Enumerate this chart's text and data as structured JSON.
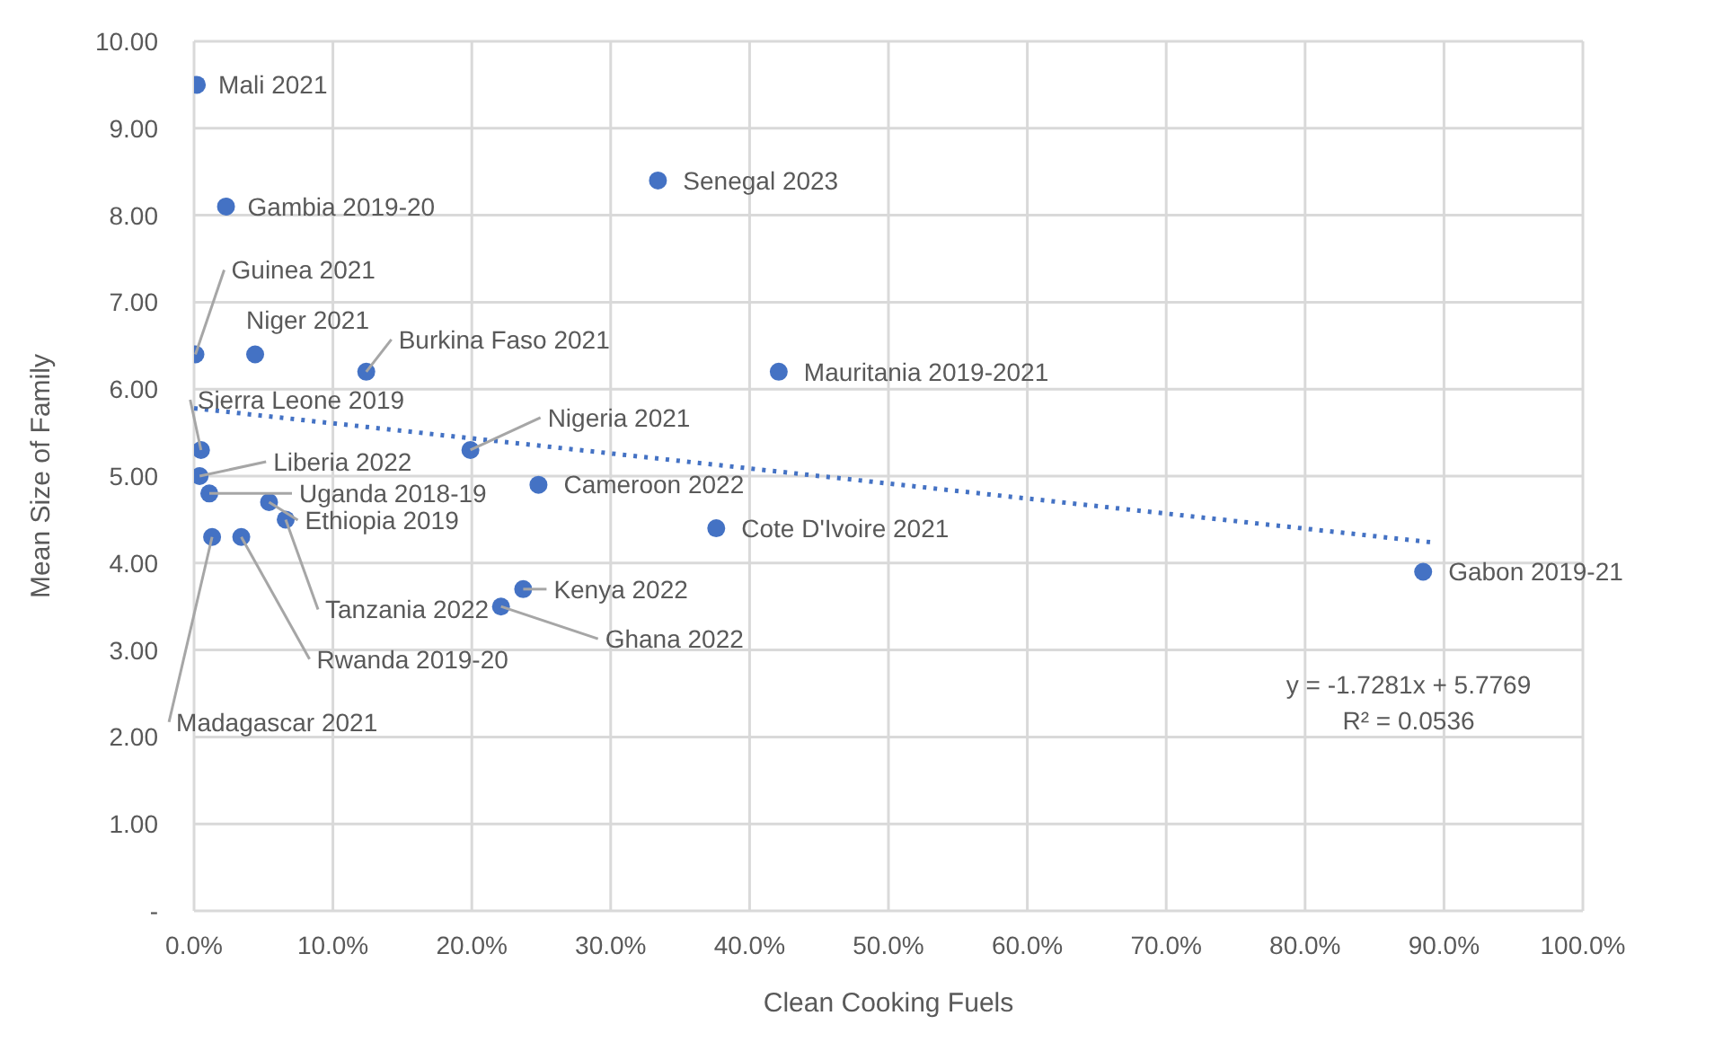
{
  "chart_data": {
    "type": "scatter",
    "xlabel": "Clean Cooking Fuels",
    "ylabel": "Mean Size of Family",
    "xlim": [
      0,
      1
    ],
    "xticks": [
      {
        "value": 0,
        "label": "0.0%"
      },
      {
        "value": 0.1,
        "label": "10.0%"
      },
      {
        "value": 0.2,
        "label": "20.0%"
      },
      {
        "value": 0.3,
        "label": "30.0%"
      },
      {
        "value": 0.4,
        "label": "40.0%"
      },
      {
        "value": 0.5,
        "label": "50.0%"
      },
      {
        "value": 0.6,
        "label": "60.0%"
      },
      {
        "value": 0.7,
        "label": "70.0%"
      },
      {
        "value": 0.8,
        "label": "80.0%"
      },
      {
        "value": 0.9,
        "label": "90.0%"
      },
      {
        "value": 1,
        "label": "100.0%"
      }
    ],
    "ylim": [
      0,
      10
    ],
    "yticks": [
      {
        "value": 0,
        "label": "-"
      },
      {
        "value": 1,
        "label": "1.00"
      },
      {
        "value": 2,
        "label": "2.00"
      },
      {
        "value": 3,
        "label": "3.00"
      },
      {
        "value": 4,
        "label": "4.00"
      },
      {
        "value": 5,
        "label": "5.00"
      },
      {
        "value": 6,
        "label": "6.00"
      },
      {
        "value": 7,
        "label": "7.00"
      },
      {
        "value": 8,
        "label": "8.00"
      },
      {
        "value": 9,
        "label": "9.00"
      },
      {
        "value": 10,
        "label": "10.00"
      }
    ],
    "grid": true,
    "marker": "circle",
    "series": [
      {
        "type": "scatter",
        "color": "#4472c4",
        "x": [
          0.002,
          0.023,
          0.001,
          0.044,
          0.124,
          0.005,
          0.004,
          0.011,
          0.054,
          0.066,
          0.013,
          0.034,
          0.199,
          0.248,
          0.334,
          0.421,
          0.376,
          0.237,
          0.221,
          0.885
        ],
        "values": [
          9.5,
          8.1,
          6.4,
          6.4,
          6.2,
          5.3,
          5.0,
          4.8,
          4.7,
          4.5,
          4.3,
          4.3,
          5.3,
          4.9,
          8.4,
          6.2,
          4.4,
          3.7,
          3.5,
          3.9
        ]
      },
      {
        "type": "line",
        "color": "#4472c4",
        "x": [
          0,
          0.89
        ],
        "values": [
          5.78,
          4.24
        ],
        "line_style": "dotted",
        "marker": "none"
      }
    ],
    "annotations": [
      {
        "text": "Mali 2021",
        "x": 0.002,
        "y": 9.5
      },
      {
        "text": "Gambia 2019-20",
        "x": 0.023,
        "y": 8.1
      },
      {
        "text": "Guinea 2021",
        "x": 0.001,
        "y": 6.4
      },
      {
        "text": "Niger 2021",
        "x": 0.044,
        "y": 6.4
      },
      {
        "text": "Burkina Faso 2021",
        "x": 0.124,
        "y": 6.2
      },
      {
        "text": "Sierra Leone 2019",
        "x": 0.005,
        "y": 5.3
      },
      {
        "text": "Liberia 2022",
        "x": 0.004,
        "y": 5.0
      },
      {
        "text": "Uganda 2018-19",
        "x": 0.011,
        "y": 4.8
      },
      {
        "text": "Ethiopia 2019",
        "x": 0.054,
        "y": 4.7
      },
      {
        "text": "Tanzania 2022",
        "x": 0.066,
        "y": 4.5
      },
      {
        "text": "Madagascar 2021",
        "x": 0.013,
        "y": 4.3
      },
      {
        "text": "Rwanda 2019-20",
        "x": 0.034,
        "y": 4.3
      },
      {
        "text": "Nigeria 2021",
        "x": 0.199,
        "y": 5.3
      },
      {
        "text": "Cameroon 2022",
        "x": 0.248,
        "y": 4.9
      },
      {
        "text": "Senegal 2023",
        "x": 0.334,
        "y": 8.4
      },
      {
        "text": "Mauritania 2019-2021",
        "x": 0.421,
        "y": 6.2
      },
      {
        "text": "Cote D'Ivoire 2021",
        "x": 0.376,
        "y": 4.4
      },
      {
        "text": "Kenya 2022",
        "x": 0.237,
        "y": 3.7
      },
      {
        "text": "Ghana 2022",
        "x": 0.221,
        "y": 3.5
      },
      {
        "text": "Gabon 2019-21",
        "x": 0.885,
        "y": 3.9
      },
      "y = -1.7281x + 5.7769",
      "R² = 0.0536"
    ]
  }
}
